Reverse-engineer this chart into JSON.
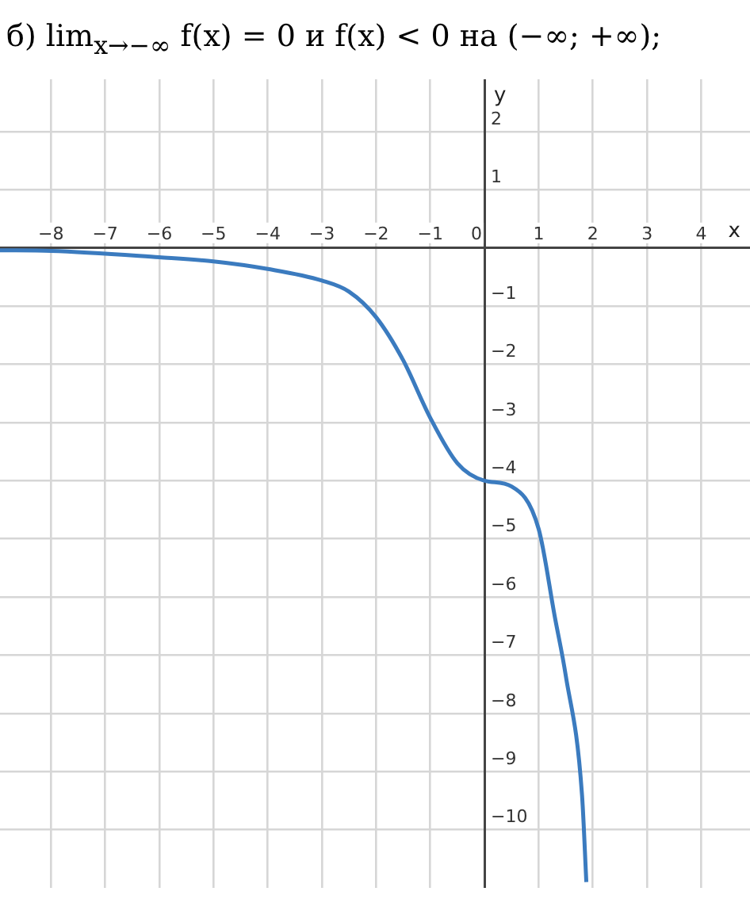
{
  "chart_data": {
    "type": "line",
    "title": "б) lim$_{x→−∞}$ f(x) = 0  и  f(x) < 0 на (−∞; +∞);",
    "xlabel": "x",
    "ylabel": "y",
    "series": [
      {
        "color": "#3b7bbf",
        "x": [
          -8.94,
          -8,
          -6,
          -5,
          -4,
          -3,
          -2.5,
          -2,
          -1.5,
          -1,
          -0.5,
          0,
          0.5,
          1,
          1.3,
          1.5,
          1.8,
          1.88
        ],
        "values": [
          -0.04,
          -0.05,
          -0.16,
          -0.23,
          -0.36,
          -0.56,
          -0.75,
          -1.19,
          -1.93,
          -2.92,
          -3.7,
          -4,
          -4.1,
          -4.83,
          -6.35,
          -7.35,
          -9.4,
          -10.9
        ]
      }
    ],
    "xlim": [
      -8.94,
      4.9
    ],
    "ylim": [
      -11,
      2.9
    ],
    "xticks": [
      -8,
      -7,
      -6,
      -5,
      -4,
      -3,
      -2,
      -1,
      0,
      1,
      2,
      3,
      4
    ],
    "yticks": [
      -10,
      -9,
      -8,
      -7,
      -6,
      -5,
      -4,
      -3,
      -2,
      -1,
      1,
      2
    ],
    "grid": true,
    "legend": false,
    "marker": "none",
    "line_style": "solid"
  }
}
